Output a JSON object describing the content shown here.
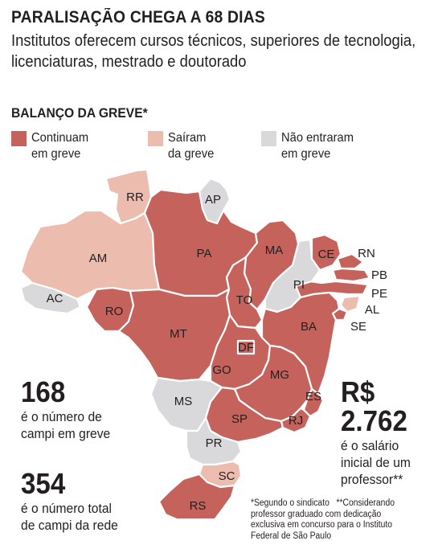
{
  "title": "PARALISAÇÃO CHEGA A 68 DIAS",
  "subtitle": "Institutos oferecem cursos técnicos, superiores de tecnologia, licenciaturas, mestrado e doutorado",
  "legend": {
    "title": "BALANÇO DA GREVE*",
    "items": [
      {
        "label_line1": "Continuam",
        "label_line2": "em greve",
        "color": "#c4625b"
      },
      {
        "label_line1": "Saíram",
        "label_line2": "da greve",
        "color": "#ecbcae"
      },
      {
        "label_line1": "Não entraram",
        "label_line2": "em greve",
        "color": "#d9d8da"
      }
    ]
  },
  "colors": {
    "continuam": "#c4625b",
    "sairam": "#ecbcae",
    "nao_entraram": "#d9d8da"
  },
  "states": {
    "RR": {
      "label": "RR",
      "status": "sairam"
    },
    "AP": {
      "label": "AP",
      "status": "nao_entraram"
    },
    "AM": {
      "label": "AM",
      "status": "sairam"
    },
    "PA": {
      "label": "PA",
      "status": "continuam"
    },
    "MA": {
      "label": "MA",
      "status": "continuam"
    },
    "CE": {
      "label": "CE",
      "status": "continuam"
    },
    "RN": {
      "label": "RN",
      "status": "continuam"
    },
    "PB": {
      "label": "PB",
      "status": "continuam"
    },
    "PE": {
      "label": "PE",
      "status": "continuam"
    },
    "AL": {
      "label": "AL",
      "status": "sairam"
    },
    "SE": {
      "label": "SE",
      "status": "continuam"
    },
    "PI": {
      "label": "PI",
      "status": "nao_entraram"
    },
    "AC": {
      "label": "AC",
      "status": "nao_entraram"
    },
    "RO": {
      "label": "RO",
      "status": "continuam"
    },
    "TO": {
      "label": "TO",
      "status": "continuam"
    },
    "BA": {
      "label": "BA",
      "status": "continuam"
    },
    "MT": {
      "label": "MT",
      "status": "continuam"
    },
    "DF": {
      "label": "DF",
      "status": "continuam"
    },
    "GO": {
      "label": "GO",
      "status": "continuam"
    },
    "MG": {
      "label": "MG",
      "status": "continuam"
    },
    "ES": {
      "label": "ES",
      "status": "continuam"
    },
    "MS": {
      "label": "MS",
      "status": "nao_entraram"
    },
    "SP": {
      "label": "SP",
      "status": "continuam"
    },
    "RJ": {
      "label": "RJ",
      "status": "continuam"
    },
    "PR": {
      "label": "PR",
      "status": "nao_entraram"
    },
    "SC": {
      "label": "SC",
      "status": "sairam"
    },
    "RS": {
      "label": "RS",
      "status": "continuam"
    }
  },
  "stats": {
    "strike_campi": {
      "number": "168",
      "text_line1": "é o número de",
      "text_line2": "campi em greve"
    },
    "total_campi": {
      "number": "354",
      "text_line1": "é o número total",
      "text_line2": "de campi da rede"
    },
    "salary": {
      "number": "R$ 2.762",
      "text_line1": "é o salário",
      "text_line2": "inicial de um",
      "text_line3": "professor**"
    }
  },
  "notes": {
    "line1": "*Segundo o sindicato   **Considerando",
    "line2": "professor graduado com dedicação",
    "line3": "exclusiva em concurso para o Instituto",
    "line4": "Federal de São Paulo"
  }
}
